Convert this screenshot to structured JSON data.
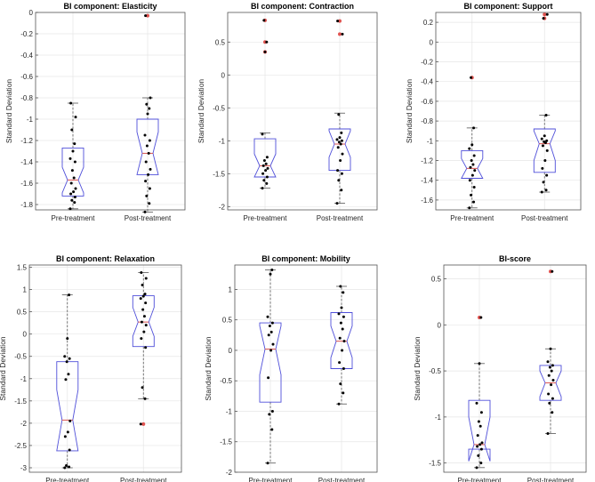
{
  "figure": {
    "ylabel": "Standard Deviation",
    "colors": {
      "box": "#4f4fd9",
      "median": "#d9534f",
      "outlier": "#e0524f",
      "point": "#000000",
      "grid": "#e6e6e6"
    }
  },
  "chart_data": [
    {
      "type": "box",
      "title": "BI component: Elasticity",
      "ylabel": "Standard Deviation",
      "categories": [
        "Pre-treatment",
        "Post-treatment"
      ],
      "ylim": [
        -1.85,
        0
      ],
      "yticks": [
        -1.8,
        -1.6,
        -1.4,
        -1.2,
        -1,
        -0.8,
        -0.6,
        -0.4,
        -0.2,
        0
      ],
      "ytick_labels": [
        "-1.8",
        "-1.6",
        "-1.4",
        "-1.2",
        "-1",
        "-0.8",
        "-0.6",
        "-0.4",
        "-0.2",
        "0"
      ],
      "boxes": [
        {
          "q1": -1.72,
          "median": -1.57,
          "q3": -1.27,
          "whisker_low": -1.84,
          "whisker_high": -0.85,
          "notch_low": -1.69,
          "notch_high": -1.45,
          "outliers": []
        },
        {
          "q1": -1.52,
          "median": -1.32,
          "q3": -1.0,
          "whisker_low": -1.87,
          "whisker_high": -0.8,
          "notch_low": -1.52,
          "notch_high": -1.12,
          "outliers": [
            -0.03
          ]
        }
      ],
      "points": [
        [
          -1.84,
          -1.78,
          -1.76,
          -1.73,
          -1.7,
          -1.68,
          -1.65,
          -1.6,
          -1.55,
          -1.48,
          -1.4,
          -1.37,
          -1.3,
          -1.23,
          -1.1,
          -0.98,
          -0.85
        ],
        [
          -1.87,
          -1.79,
          -1.72,
          -1.65,
          -1.58,
          -1.52,
          -1.47,
          -1.4,
          -1.32,
          -1.25,
          -1.2,
          -1.15,
          -0.95,
          -0.9,
          -0.86,
          -0.8,
          -0.03
        ]
      ]
    },
    {
      "type": "box",
      "title": "BI component: Contraction",
      "ylabel": "Standard Deviation",
      "categories": [
        "Pre-treatment",
        "Post-treatment"
      ],
      "ylim": [
        -2.05,
        0.95
      ],
      "yticks": [
        -2,
        -1.5,
        -1,
        -0.5,
        0,
        0.5
      ],
      "ytick_labels": [
        "-2",
        "-1.5",
        "-1",
        "-0.5",
        "0",
        "0.5"
      ],
      "boxes": [
        {
          "q1": -1.55,
          "median": -1.38,
          "q3": -0.97,
          "whisker_low": -1.72,
          "whisker_high": -0.88,
          "notch_low": -1.55,
          "notch_high": -1.2,
          "outliers": [
            0.35,
            0.5,
            0.83
          ]
        },
        {
          "q1": -1.45,
          "median": -1.05,
          "q3": -0.82,
          "whisker_low": -1.95,
          "whisker_high": -0.58,
          "notch_low": -1.25,
          "notch_high": -0.85,
          "outliers": [
            0.62,
            0.82
          ]
        }
      ],
      "points": [
        [
          -1.72,
          -1.65,
          -1.6,
          -1.55,
          -1.5,
          -1.45,
          -1.42,
          -1.38,
          -1.35,
          -1.3,
          -1.25,
          -0.9,
          0.35,
          0.5,
          0.83
        ],
        [
          -1.95,
          -1.75,
          -1.6,
          -1.5,
          -1.45,
          -1.3,
          -1.2,
          -1.1,
          -1.05,
          -1.02,
          -1.0,
          -0.98,
          -0.95,
          -0.88,
          -0.6,
          0.62,
          0.82
        ]
      ]
    },
    {
      "type": "box",
      "title": "BI component: Support",
      "ylabel": "Standard Deviation",
      "categories": [
        "Pre-treatment",
        "Post-treatment"
      ],
      "ylim": [
        -1.7,
        0.3
      ],
      "yticks": [
        -1.6,
        -1.4,
        -1.2,
        -1,
        -0.8,
        -0.6,
        -0.4,
        -0.2,
        0,
        0.2
      ],
      "ytick_labels": [
        "-1.6",
        "-1.4",
        "-1.2",
        "-1",
        "-0.8",
        "-0.6",
        "-0.4",
        "-0.2",
        "0",
        "0.2"
      ],
      "boxes": [
        {
          "q1": -1.38,
          "median": -1.28,
          "q3": -1.1,
          "whisker_low": -1.68,
          "whisker_high": -0.87,
          "notch_low": -1.38,
          "notch_high": -1.18,
          "outliers": [
            -0.36
          ]
        },
        {
          "q1": -1.32,
          "median": -1.03,
          "q3": -0.88,
          "whisker_low": -1.52,
          "whisker_high": -0.74,
          "notch_low": -1.2,
          "notch_high": -0.9,
          "outliers": [
            0.24,
            0.28
          ]
        }
      ],
      "points": [
        [
          -1.68,
          -1.62,
          -1.55,
          -1.47,
          -1.4,
          -1.35,
          -1.3,
          -1.27,
          -1.24,
          -1.2,
          -1.15,
          -1.08,
          -1.04,
          -0.87,
          -0.36
        ],
        [
          -1.52,
          -1.5,
          -1.42,
          -1.35,
          -1.28,
          -1.2,
          -1.1,
          -1.05,
          -1.02,
          -1.01,
          -1.0,
          -0.98,
          -0.95,
          -0.74,
          0.24,
          0.28
        ]
      ]
    },
    {
      "type": "box",
      "title": "BI component: Relaxation",
      "ylabel": "Standard Deviation",
      "categories": [
        "Pre-treatment",
        "Post-treatment"
      ],
      "ylim": [
        -3.1,
        1.55
      ],
      "yticks": [
        -3,
        -2.5,
        -2,
        -1.5,
        -1,
        -0.5,
        0,
        0.5,
        1,
        1.5
      ],
      "ytick_labels": [
        "-3",
        "-2.5",
        "-2",
        "-1.5",
        "-1",
        "-0.5",
        "0",
        "0.5",
        "1",
        "1.5"
      ],
      "boxes": [
        {
          "q1": -2.62,
          "median": -1.93,
          "q3": -0.62,
          "whisker_low": -3.0,
          "whisker_high": 0.88,
          "notch_low": -2.62,
          "notch_high": -1.25,
          "outliers": []
        },
        {
          "q1": -0.28,
          "median": 0.27,
          "q3": 0.86,
          "whisker_low": -1.45,
          "whisker_high": 1.38,
          "notch_low": -0.05,
          "notch_high": 0.6,
          "outliers": [
            -2.02
          ]
        }
      ],
      "points": [
        [
          -3.0,
          -2.98,
          -2.95,
          -2.6,
          -2.3,
          -2.2,
          -1.95,
          -1.02,
          -0.9,
          -0.62,
          -0.55,
          -0.5,
          -0.1,
          0.88
        ],
        [
          -2.02,
          -1.45,
          -1.2,
          -0.3,
          -0.1,
          0.05,
          0.2,
          0.27,
          0.4,
          0.55,
          0.7,
          0.8,
          0.85,
          0.9,
          1.1,
          1.25,
          1.38
        ]
      ]
    },
    {
      "type": "box",
      "title": "BI component: Mobility",
      "ylabel": "Standard Deviation",
      "categories": [
        "Pre-treatment",
        "Post-treatment"
      ],
      "ylim": [
        -2.0,
        1.4
      ],
      "yticks": [
        -2,
        -1.5,
        -1,
        -0.5,
        0,
        0.5,
        1
      ],
      "ytick_labels": [
        "-2",
        "-1.5",
        "-1",
        "-0.5",
        "0",
        "0.5",
        "1"
      ],
      "boxes": [
        {
          "q1": -0.85,
          "median": 0.02,
          "q3": 0.45,
          "whisker_low": -1.85,
          "whisker_high": 1.32,
          "notch_low": -0.4,
          "notch_high": 0.4,
          "outliers": []
        },
        {
          "q1": -0.3,
          "median": 0.15,
          "q3": 0.62,
          "whisker_low": -0.88,
          "whisker_high": 1.05,
          "notch_low": -0.12,
          "notch_high": 0.4,
          "outliers": []
        }
      ],
      "points": [
        [
          -1.85,
          -1.3,
          -1.05,
          -1.0,
          -0.45,
          0.0,
          0.1,
          0.25,
          0.3,
          0.4,
          0.45,
          0.55,
          1.25,
          1.32
        ],
        [
          -0.88,
          -0.7,
          -0.55,
          -0.3,
          -0.2,
          0.0,
          0.15,
          0.2,
          0.35,
          0.45,
          0.55,
          0.6,
          0.7,
          0.95,
          1.05
        ]
      ]
    },
    {
      "type": "box",
      "title": "BI-score",
      "ylabel": "Standard Deviation",
      "categories": [
        "Pre-treatment",
        "Post-treatment"
      ],
      "ylim": [
        -1.6,
        0.65
      ],
      "yticks": [
        -1.5,
        -1,
        -0.5,
        0,
        0.5
      ],
      "ytick_labels": [
        "-1.5",
        "-1",
        "-0.5",
        "0",
        "0.5"
      ],
      "boxes": [
        {
          "q1": -1.35,
          "median": -1.3,
          "q3": -0.82,
          "whisker_low": -1.55,
          "whisker_high": -0.42,
          "notch_low": -1.48,
          "notch_high": -1.0,
          "outliers": [
            0.08
          ]
        },
        {
          "q1": -0.82,
          "median": -0.63,
          "q3": -0.44,
          "whisker_low": -1.18,
          "whisker_high": -0.26,
          "notch_low": -0.78,
          "notch_high": -0.5,
          "outliers": [
            0.58
          ]
        }
      ],
      "points": [
        [
          -1.55,
          -1.5,
          -1.42,
          -1.35,
          -1.32,
          -1.3,
          -1.28,
          -1.2,
          -1.1,
          -1.05,
          -0.95,
          -0.85,
          -0.42,
          0.08
        ],
        [
          -1.18,
          -0.95,
          -0.85,
          -0.8,
          -0.75,
          -0.65,
          -0.6,
          -0.55,
          -0.5,
          -0.46,
          -0.44,
          -0.4,
          -0.26,
          0.58
        ]
      ]
    }
  ]
}
